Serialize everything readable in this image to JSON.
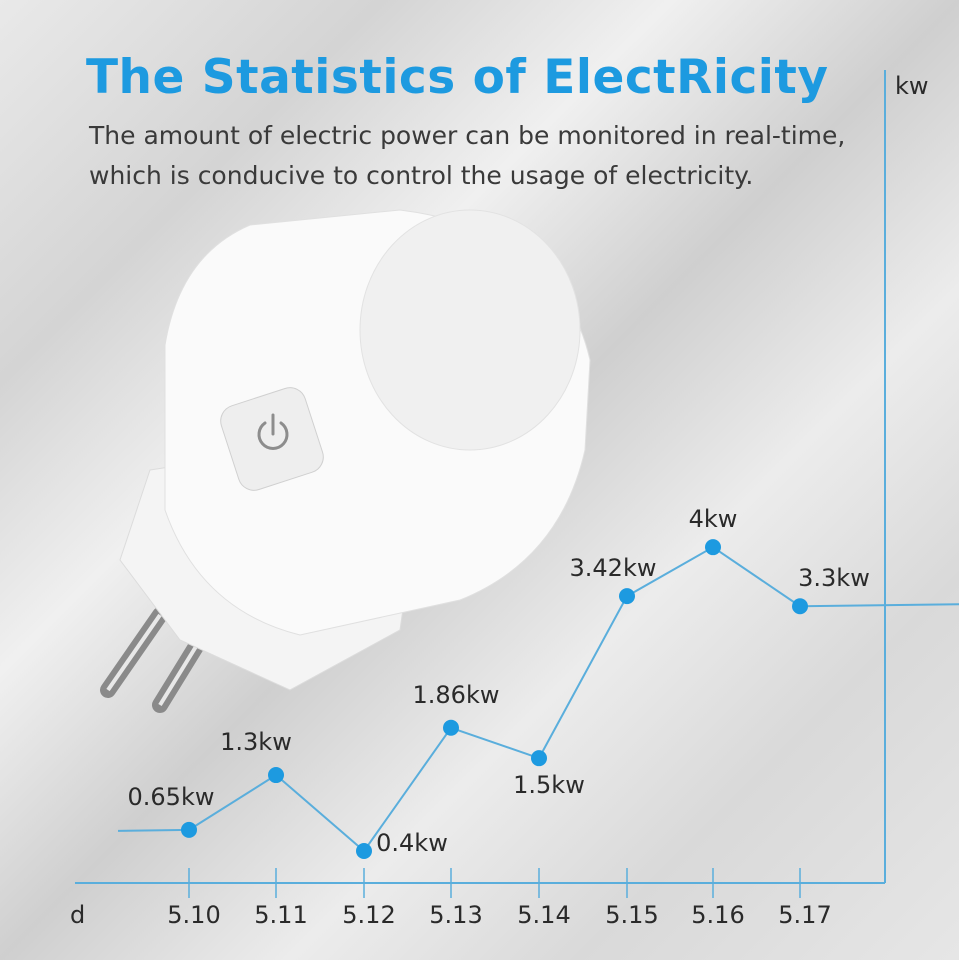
{
  "header": {
    "title": "The Statistics of ElectRicity",
    "subtitle_line1": "The amount of electric power can be monitored in real-time,",
    "subtitle_line2": "which is conducive to control the usage of electricity."
  },
  "product": {
    "icon": "power-button-icon"
  },
  "colors": {
    "accent": "#1d9ae0",
    "line": "#5aaedc",
    "text": "#2a2a2a"
  },
  "chart_data": {
    "type": "line",
    "xlabel": "d",
    "ylabel": "kw",
    "categories": [
      "5.10",
      "5.11",
      "5.12",
      "5.13",
      "5.14",
      "5.15",
      "5.16",
      "5.17"
    ],
    "values": [
      0.65,
      1.3,
      0.4,
      1.86,
      1.5,
      3.42,
      4,
      3.3
    ],
    "data_labels": [
      "0.65kw",
      "1.3kw",
      "0.4kw",
      "1.86kw",
      "1.5kw",
      "3.42kw",
      "4kw",
      "3.3kw"
    ],
    "grid": false
  }
}
